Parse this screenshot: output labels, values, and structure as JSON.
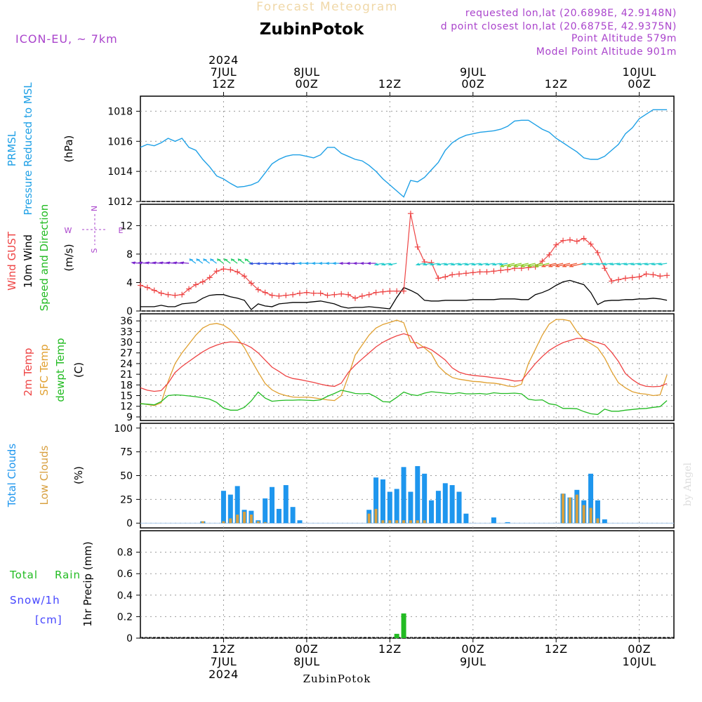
{
  "header": {
    "title_top": "Forecast Meteogram",
    "location": "ZubinPotok",
    "model": "ICON-EU, ~ 7km",
    "requested": "requested lon,lat (20.6898E, 42.9148N)",
    "closest": "d point closest lon,lat (20.6875E, 42.9375N)",
    "point_altitude": "Point Altitude 579m",
    "model_altitude": "Model Point Altitude 901m",
    "footer_location": "ZubinPotok",
    "watermark": "by Angel"
  },
  "colors": {
    "pressure": "#1ea0e6",
    "gust": "#ee4444",
    "wind": "#000000",
    "wind_dir": "#22bb22",
    "t2m": "#ee4444",
    "sfc": "#e0a030",
    "dewpt": "#22bb22",
    "total_clouds": "#1e96ee",
    "low_clouds": "#d8a040",
    "rain": "#22bb22",
    "snow": "#4444ff",
    "compass": "#aa44cc",
    "title_top": "#f0d8a8",
    "purple_text": "#aa44cc",
    "grid": "#999999"
  },
  "time_axis": {
    "top_labels": [
      {
        "t": 12,
        "lines": [
          "2024",
          "7JUL",
          "12Z"
        ]
      },
      {
        "t": 24,
        "lines": [
          "",
          "8JUL",
          "00Z"
        ]
      },
      {
        "t": 36,
        "lines": [
          "",
          "",
          "12Z"
        ]
      },
      {
        "t": 48,
        "lines": [
          "",
          "9JUL",
          "00Z"
        ]
      },
      {
        "t": 60,
        "lines": [
          "",
          "",
          "12Z"
        ]
      },
      {
        "t": 72,
        "lines": [
          "",
          "10JUL",
          "00Z"
        ]
      }
    ],
    "bottom_labels": [
      {
        "t": 12,
        "lines": [
          "12Z",
          "7JUL",
          "2024"
        ]
      },
      {
        "t": 24,
        "lines": [
          "00Z",
          "8JUL",
          ""
        ]
      },
      {
        "t": 36,
        "lines": [
          "12Z",
          "",
          ""
        ]
      },
      {
        "t": 48,
        "lines": [
          "00Z",
          "9JUL",
          ""
        ]
      },
      {
        "t": 60,
        "lines": [
          "12Z",
          "",
          ""
        ]
      },
      {
        "t": 72,
        "lines": [
          "00Z",
          "10JUL",
          ""
        ]
      }
    ],
    "range": [
      0,
      77
    ]
  },
  "chart_data": [
    {
      "type": "line",
      "name": "pressure",
      "labels": [
        "PRMSL",
        "Pressure Reduced to MSL",
        "(hPa)"
      ],
      "ylim": [
        1012,
        1019
      ],
      "yticks": [
        1012,
        1014,
        1016,
        1018
      ],
      "x": [
        0,
        1,
        2,
        3,
        4,
        5,
        6,
        7,
        8,
        9,
        10,
        11,
        12,
        13,
        14,
        15,
        16,
        17,
        18,
        19,
        20,
        21,
        22,
        23,
        24,
        25,
        26,
        27,
        28,
        29,
        30,
        31,
        32,
        33,
        34,
        35,
        36,
        37,
        38,
        39,
        40,
        41,
        42,
        43,
        44,
        45,
        46,
        47,
        48,
        49,
        50,
        51,
        52,
        53,
        54,
        55,
        56,
        57,
        58,
        59,
        60,
        61,
        62,
        63,
        64,
        65,
        66,
        67,
        68,
        69,
        70,
        71,
        72,
        73,
        74,
        75,
        76
      ],
      "values": [
        1015.6,
        1015.8,
        1015.7,
        1015.9,
        1016.2,
        1016.0,
        1016.2,
        1015.6,
        1015.4,
        1014.8,
        1014.3,
        1013.7,
        1013.5,
        1013.2,
        1012.95,
        1013.0,
        1013.1,
        1013.3,
        1013.9,
        1014.5,
        1014.8,
        1015.0,
        1015.1,
        1015.1,
        1015.0,
        1014.9,
        1015.1,
        1015.6,
        1015.6,
        1015.2,
        1015.0,
        1014.8,
        1014.7,
        1014.4,
        1014.0,
        1013.5,
        1013.1,
        1012.7,
        1012.3,
        1013.4,
        1013.3,
        1013.6,
        1014.1,
        1014.6,
        1015.4,
        1015.9,
        1016.2,
        1016.4,
        1016.5,
        1016.6,
        1016.65,
        1016.7,
        1016.8,
        1017.0,
        1017.35,
        1017.4,
        1017.4,
        1017.1,
        1016.8,
        1016.6,
        1016.2,
        1015.9,
        1015.6,
        1015.3,
        1014.9,
        1014.8,
        1014.8,
        1015.0,
        1015.4,
        1015.8,
        1016.5,
        1016.9,
        1017.5,
        1017.8,
        1018.1,
        1018.1,
        1018.1
      ]
    },
    {
      "type": "line",
      "name": "wind",
      "labels": [
        "Wind GUST",
        "10m Wind",
        "Speed and Direction",
        "(m/s)"
      ],
      "compass": {
        "n": "N",
        "s": "S",
        "w": "W",
        "e": "E"
      },
      "ylim": [
        0,
        15
      ],
      "yticks": [
        0,
        4,
        8,
        12
      ],
      "x": [
        0,
        1,
        2,
        3,
        4,
        5,
        6,
        7,
        8,
        9,
        10,
        11,
        12,
        13,
        14,
        15,
        16,
        17,
        18,
        19,
        20,
        21,
        22,
        23,
        24,
        25,
        26,
        27,
        28,
        29,
        30,
        31,
        32,
        33,
        34,
        35,
        36,
        37,
        38,
        39,
        40,
        41,
        42,
        43,
        44,
        45,
        46,
        47,
        48,
        49,
        50,
        51,
        52,
        53,
        54,
        55,
        56,
        57,
        58,
        59,
        60,
        61,
        62,
        63,
        64,
        65,
        66,
        67,
        68,
        69,
        70,
        71,
        72,
        73,
        74,
        75,
        76
      ],
      "series": [
        {
          "name": "Wind GUST",
          "values": [
            3.6,
            3.3,
            2.9,
            2.5,
            2.3,
            2.2,
            2.3,
            3.1,
            3.7,
            4.1,
            4.7,
            5.6,
            5.9,
            5.8,
            5.5,
            4.9,
            3.9,
            3.0,
            2.6,
            2.2,
            2.1,
            2.2,
            2.3,
            2.5,
            2.6,
            2.5,
            2.5,
            2.2,
            2.3,
            2.4,
            2.3,
            1.8,
            2.1,
            2.3,
            2.6,
            2.7,
            2.8,
            2.8,
            2.8,
            13.7,
            9.0,
            6.9,
            6.8,
            4.6,
            4.8,
            5.1,
            5.2,
            5.3,
            5.4,
            5.5,
            5.5,
            5.6,
            5.7,
            5.8,
            6.0,
            6.0,
            6.1,
            6.2,
            7.0,
            7.9,
            9.3,
            9.9,
            10.0,
            9.8,
            10.2,
            9.4,
            8.2,
            6.0,
            4.2,
            4.4,
            4.6,
            4.7,
            4.8,
            5.2,
            5.1,
            4.9,
            5.0
          ]
        },
        {
          "name": "10m Wind",
          "values": [
            0.6,
            0.6,
            0.6,
            0.8,
            0.6,
            0.6,
            1.0,
            1.1,
            1.2,
            1.8,
            2.2,
            2.3,
            2.3,
            2.0,
            1.8,
            1.5,
            0.2,
            1.0,
            0.7,
            0.6,
            1.0,
            1.1,
            1.2,
            1.2,
            1.2,
            1.3,
            1.4,
            1.2,
            1.0,
            0.6,
            0.4,
            0.5,
            0.5,
            0.6,
            0.5,
            0.4,
            0.3,
            1.9,
            3.3,
            2.9,
            2.4,
            1.5,
            1.4,
            1.4,
            1.5,
            1.5,
            1.5,
            1.5,
            1.6,
            1.6,
            1.6,
            1.6,
            1.7,
            1.7,
            1.7,
            1.6,
            1.6,
            2.3,
            2.6,
            3.0,
            3.6,
            4.1,
            4.3,
            4.0,
            3.7,
            2.6,
            0.9,
            1.4,
            1.5,
            1.5,
            1.6,
            1.6,
            1.7,
            1.7,
            1.8,
            1.7,
            1.5
          ]
        }
      ]
    },
    {
      "type": "line",
      "name": "temperature",
      "labels": [
        "2m Temp",
        "SFC Temp",
        "dewpt Temp",
        "(C)"
      ],
      "ylim": [
        8,
        38
      ],
      "yticks": [
        9,
        12,
        15,
        18,
        21,
        24,
        27,
        30,
        33,
        36
      ],
      "x": [
        0,
        1,
        2,
        3,
        4,
        5,
        6,
        7,
        8,
        9,
        10,
        11,
        12,
        13,
        14,
        15,
        16,
        17,
        18,
        19,
        20,
        21,
        22,
        23,
        24,
        25,
        26,
        27,
        28,
        29,
        30,
        31,
        32,
        33,
        34,
        35,
        36,
        37,
        38,
        39,
        40,
        41,
        42,
        43,
        44,
        45,
        46,
        47,
        48,
        49,
        50,
        51,
        52,
        53,
        54,
        55,
        56,
        57,
        58,
        59,
        60,
        61,
        62,
        63,
        64,
        65,
        66,
        67,
        68,
        69,
        70,
        71,
        72,
        73,
        74,
        75,
        76
      ],
      "series": [
        {
          "name": "2m Temp",
          "values": [
            17.2,
            16.5,
            16.2,
            16.4,
            18.5,
            21.5,
            23.2,
            24.6,
            26.0,
            27.3,
            28.4,
            29.2,
            29.8,
            30.1,
            30.0,
            29.5,
            28.5,
            27.0,
            25.0,
            23.0,
            21.8,
            20.5,
            19.8,
            19.5,
            19.1,
            18.7,
            18.2,
            17.8,
            17.6,
            18.5,
            21.5,
            23.6,
            25.3,
            27.0,
            28.7,
            30.0,
            31.0,
            31.8,
            32.4,
            31.8,
            28.3,
            28.7,
            27.9,
            26.5,
            25.0,
            22.8,
            21.6,
            21.0,
            20.7,
            20.5,
            20.3,
            20.0,
            19.8,
            19.5,
            19.1,
            19.2,
            21.6,
            24.0,
            26.0,
            27.7,
            28.9,
            29.9,
            30.5,
            31.1,
            31.0,
            30.4,
            29.9,
            29.3,
            27.2,
            24.6,
            21.2,
            19.5,
            18.2,
            17.6,
            17.5,
            17.6,
            18.4
          ]
        },
        {
          "name": "SFC Temp",
          "values": [
            12.8,
            12.5,
            12.2,
            13.0,
            19.0,
            24.0,
            27.0,
            29.5,
            32.0,
            34.0,
            35.0,
            35.3,
            34.8,
            33.5,
            31.2,
            28.5,
            25.0,
            21.6,
            18.4,
            16.6,
            15.6,
            15.0,
            14.6,
            14.5,
            14.6,
            14.4,
            14.1,
            13.8,
            13.6,
            15.0,
            20.4,
            26.4,
            29.2,
            32.0,
            34.0,
            35.0,
            35.6,
            36.2,
            35.5,
            30.0,
            29.8,
            28.4,
            26.8,
            23.3,
            21.4,
            20.1,
            19.6,
            19.3,
            19.0,
            18.9,
            18.6,
            18.5,
            18.2,
            17.7,
            17.5,
            18.2,
            24.0,
            28.0,
            32.0,
            35.1,
            36.4,
            36.4,
            36.0,
            33.0,
            30.8,
            29.6,
            28.4,
            25.6,
            21.8,
            18.6,
            17.2,
            16.1,
            15.6,
            15.4,
            15.0,
            15.2,
            20.8
          ]
        },
        {
          "name": "dewpt Temp",
          "values": [
            12.7,
            12.6,
            12.4,
            13.3,
            15.0,
            15.2,
            15.1,
            14.9,
            14.7,
            14.4,
            14.0,
            13.1,
            11.5,
            10.9,
            10.9,
            11.7,
            13.5,
            16.0,
            14.3,
            13.4,
            13.6,
            13.7,
            13.7,
            13.8,
            13.7,
            13.6,
            13.8,
            14.8,
            15.6,
            16.5,
            16.1,
            15.6,
            15.5,
            15.6,
            14.6,
            13.3,
            13.2,
            14.5,
            16.0,
            15.3,
            15.0,
            15.7,
            16.1,
            15.9,
            15.7,
            15.5,
            15.8,
            15.5,
            15.5,
            15.6,
            15.4,
            15.8,
            15.6,
            15.6,
            15.7,
            15.5,
            14.0,
            13.7,
            13.8,
            12.7,
            12.4,
            11.4,
            11.4,
            11.3,
            10.5,
            9.9,
            9.7,
            11.2,
            10.6,
            10.6,
            10.9,
            11.1,
            11.3,
            11.4,
            11.7,
            11.9,
            13.6
          ]
        }
      ]
    },
    {
      "type": "bar",
      "name": "clouds",
      "labels": [
        "Total Clouds",
        "Low Clouds",
        "(%)"
      ],
      "ylim": [
        -5,
        105
      ],
      "yticks": [
        0,
        25,
        50,
        75,
        100
      ],
      "x": [
        0,
        1,
        2,
        3,
        4,
        5,
        6,
        7,
        8,
        9,
        10,
        11,
        12,
        13,
        14,
        15,
        16,
        17,
        18,
        19,
        20,
        21,
        22,
        23,
        24,
        25,
        26,
        27,
        28,
        29,
        30,
        31,
        32,
        33,
        34,
        35,
        36,
        37,
        38,
        39,
        40,
        41,
        42,
        43,
        44,
        45,
        46,
        47,
        48,
        49,
        50,
        51,
        52,
        53,
        54,
        55,
        56,
        57,
        58,
        59,
        60,
        61,
        62,
        63,
        64,
        65,
        66,
        67,
        68,
        69,
        70,
        71,
        72,
        73,
        74,
        75,
        76
      ],
      "series": [
        {
          "name": "Total Clouds",
          "values": [
            0,
            0,
            0,
            0,
            0,
            0,
            0,
            0,
            0,
            2,
            0,
            0,
            34,
            30,
            39,
            14,
            13,
            3,
            26,
            38,
            15,
            40,
            17,
            3,
            0,
            0,
            0,
            0,
            0,
            0,
            0,
            0,
            0,
            14,
            48,
            46,
            33,
            36,
            59,
            33,
            60,
            52,
            24,
            34,
            42,
            40,
            33,
            10,
            0,
            0,
            0,
            6,
            0,
            1,
            0,
            0,
            0,
            0,
            0,
            0,
            0,
            31,
            27,
            35,
            24,
            52,
            24,
            4,
            0,
            0,
            0,
            0,
            0,
            0,
            0,
            0,
            0
          ]
        },
        {
          "name": "Low Clouds",
          "values": [
            0,
            0,
            0,
            0,
            0,
            0,
            0,
            0,
            0,
            2,
            0,
            0,
            2,
            5,
            9,
            12,
            9,
            2,
            1,
            0,
            0,
            0,
            0,
            0,
            0,
            0,
            0,
            0,
            0,
            0,
            0,
            0,
            0,
            10,
            15,
            3,
            3,
            3,
            3,
            3,
            3,
            3,
            0,
            0,
            0,
            0,
            0,
            0,
            0,
            0,
            0,
            0,
            0,
            0,
            0,
            0,
            0,
            0,
            0,
            0,
            0,
            31,
            27,
            30,
            19,
            16,
            5,
            0,
            0,
            0,
            0,
            0,
            0,
            0,
            0,
            0,
            0
          ]
        }
      ]
    },
    {
      "type": "bar",
      "name": "precipitation",
      "labels": [
        "Total",
        "Rain",
        "Snow/1h",
        "[cm]",
        "1hr Precip (mm)"
      ],
      "ylim": [
        0,
        1.0
      ],
      "yticks": [
        0,
        0.2,
        0.4,
        0.6,
        0.8
      ],
      "ytick_labels": [
        "0",
        "0.2",
        "0.4",
        "0.6",
        "0.8"
      ],
      "x": [
        37,
        38
      ],
      "values": [
        0.04,
        0.23
      ]
    }
  ]
}
